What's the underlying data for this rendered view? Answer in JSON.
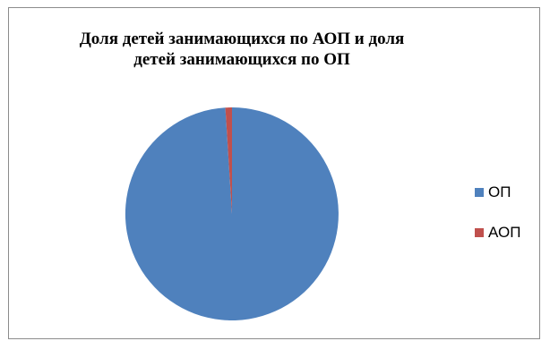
{
  "chart_data": {
    "type": "pie",
    "title": "Доля детей занимающихся по АОП и доля детей занимающихся по ОП",
    "title_lines": [
      "Доля детей занимающихся по АОП и доля",
      "детей занимающихся по ОП"
    ],
    "categories": [
      "ОП",
      "АОП"
    ],
    "values": [
      99,
      1
    ],
    "colors": [
      "#4f81bd",
      "#c0504d"
    ],
    "legend_position": "right",
    "start_angle_deg": 0,
    "direction": "clockwise"
  }
}
